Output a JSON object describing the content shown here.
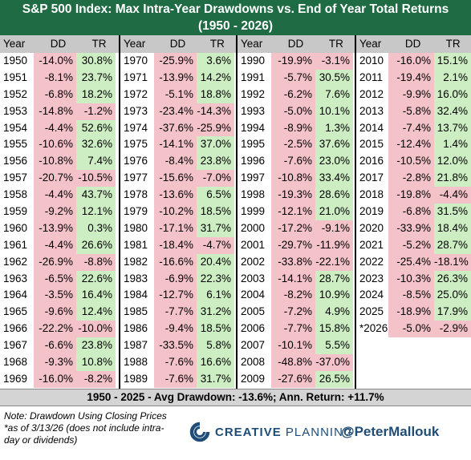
{
  "title": {
    "line1": "S&P 500 Index: Max Intra-Year Drawdowns vs. End of Year Total Returns",
    "line2": "(1950 - 2026)"
  },
  "headers": {
    "year": "Year",
    "dd": "DD",
    "tr": "TR"
  },
  "colors": {
    "title_bg": "#1f6b43",
    "header_bg": "#c8c8c8",
    "negative_bg": "#f4c2c9",
    "positive_bg": "#cdeec3",
    "footer_bg": "#d4d4d4",
    "brand": "#1f4d78"
  },
  "chart_data": {
    "type": "table",
    "columns": [
      "Year",
      "DD",
      "TR"
    ],
    "rows": [
      [
        "1950",
        "-14.0%",
        "30.8%"
      ],
      [
        "1951",
        "-8.1%",
        "23.7%"
      ],
      [
        "1952",
        "-6.8%",
        "18.2%"
      ],
      [
        "1953",
        "-14.8%",
        "-1.2%"
      ],
      [
        "1954",
        "-4.4%",
        "52.6%"
      ],
      [
        "1955",
        "-10.6%",
        "32.6%"
      ],
      [
        "1956",
        "-10.8%",
        "7.4%"
      ],
      [
        "1957",
        "-20.7%",
        "-10.5%"
      ],
      [
        "1958",
        "-4.4%",
        "43.7%"
      ],
      [
        "1959",
        "-9.2%",
        "12.1%"
      ],
      [
        "1960",
        "-13.9%",
        "0.3%"
      ],
      [
        "1961",
        "-4.4%",
        "26.6%"
      ],
      [
        "1962",
        "-26.9%",
        "-8.8%"
      ],
      [
        "1963",
        "-6.5%",
        "22.6%"
      ],
      [
        "1964",
        "-3.5%",
        "16.4%"
      ],
      [
        "1965",
        "-9.6%",
        "12.4%"
      ],
      [
        "1966",
        "-22.2%",
        "-10.0%"
      ],
      [
        "1967",
        "-6.6%",
        "23.8%"
      ],
      [
        "1968",
        "-9.3%",
        "10.8%"
      ],
      [
        "1969",
        "-16.0%",
        "-8.2%"
      ],
      [
        "1970",
        "-25.9%",
        "3.6%"
      ],
      [
        "1971",
        "-13.9%",
        "14.2%"
      ],
      [
        "1972",
        "-5.1%",
        "18.8%"
      ],
      [
        "1973",
        "-23.4%",
        "-14.3%"
      ],
      [
        "1974",
        "-37.6%",
        "-25.9%"
      ],
      [
        "1975",
        "-14.1%",
        "37.0%"
      ],
      [
        "1976",
        "-8.4%",
        "23.8%"
      ],
      [
        "1977",
        "-15.6%",
        "-7.0%"
      ],
      [
        "1978",
        "-13.6%",
        "6.5%"
      ],
      [
        "1979",
        "-10.2%",
        "18.5%"
      ],
      [
        "1980",
        "-17.1%",
        "31.7%"
      ],
      [
        "1981",
        "-18.4%",
        "-4.7%"
      ],
      [
        "1982",
        "-16.6%",
        "20.4%"
      ],
      [
        "1983",
        "-6.9%",
        "22.3%"
      ],
      [
        "1984",
        "-12.7%",
        "6.1%"
      ],
      [
        "1985",
        "-7.7%",
        "31.2%"
      ],
      [
        "1986",
        "-9.4%",
        "18.5%"
      ],
      [
        "1987",
        "-33.5%",
        "5.8%"
      ],
      [
        "1988",
        "-7.6%",
        "16.6%"
      ],
      [
        "1989",
        "-7.6%",
        "31.7%"
      ],
      [
        "1990",
        "-19.9%",
        "-3.1%"
      ],
      [
        "1991",
        "-5.7%",
        "30.5%"
      ],
      [
        "1992",
        "-6.2%",
        "7.6%"
      ],
      [
        "1993",
        "-5.0%",
        "10.1%"
      ],
      [
        "1994",
        "-8.9%",
        "1.3%"
      ],
      [
        "1995",
        "-2.5%",
        "37.6%"
      ],
      [
        "1996",
        "-7.6%",
        "23.0%"
      ],
      [
        "1997",
        "-10.8%",
        "33.4%"
      ],
      [
        "1998",
        "-19.3%",
        "28.6%"
      ],
      [
        "1999",
        "-12.1%",
        "21.0%"
      ],
      [
        "2000",
        "-17.2%",
        "-9.1%"
      ],
      [
        "2001",
        "-29.7%",
        "-11.9%"
      ],
      [
        "2002",
        "-33.8%",
        "-22.1%"
      ],
      [
        "2003",
        "-14.1%",
        "28.7%"
      ],
      [
        "2004",
        "-8.2%",
        "10.9%"
      ],
      [
        "2005",
        "-7.2%",
        "4.9%"
      ],
      [
        "2006",
        "-7.7%",
        "15.8%"
      ],
      [
        "2007",
        "-10.1%",
        "5.5%"
      ],
      [
        "2008",
        "-48.8%",
        "-37.0%"
      ],
      [
        "2009",
        "-27.6%",
        "26.5%"
      ],
      [
        "2010",
        "-16.0%",
        "15.1%"
      ],
      [
        "2011",
        "-19.4%",
        "2.1%"
      ],
      [
        "2012",
        "-9.9%",
        "16.0%"
      ],
      [
        "2013",
        "-5.8%",
        "32.4%"
      ],
      [
        "2014",
        "-7.4%",
        "13.7%"
      ],
      [
        "2015",
        "-12.4%",
        "1.4%"
      ],
      [
        "2016",
        "-10.5%",
        "12.0%"
      ],
      [
        "2017",
        "-2.8%",
        "21.8%"
      ],
      [
        "2018",
        "-19.8%",
        "-4.4%"
      ],
      [
        "2019",
        "-6.8%",
        "31.5%"
      ],
      [
        "2020",
        "-33.9%",
        "18.4%"
      ],
      [
        "2021",
        "-5.2%",
        "28.7%"
      ],
      [
        "2022",
        "-25.4%",
        "-18.1%"
      ],
      [
        "2023",
        "-10.3%",
        "26.3%"
      ],
      [
        "2024",
        "-8.5%",
        "25.0%"
      ],
      [
        "2025",
        "-18.9%",
        "17.9%"
      ],
      [
        "*2026",
        "-5.0%",
        "-2.9%"
      ]
    ],
    "rows_per_column": 20
  },
  "footer": {
    "summary": "1950 - 2025 - Avg Drawdown: -13.6%; Ann. Return: +11.7%",
    "note": "Note: Drawdown Using Closing Prices *as of 3/13/26 (does not include intra-day or dividends)",
    "brand_word1": "CREATIVE",
    "brand_word2": "PLANNING",
    "brand_icon": "creative-planning-logo",
    "handle": "@PeterMallouk"
  }
}
